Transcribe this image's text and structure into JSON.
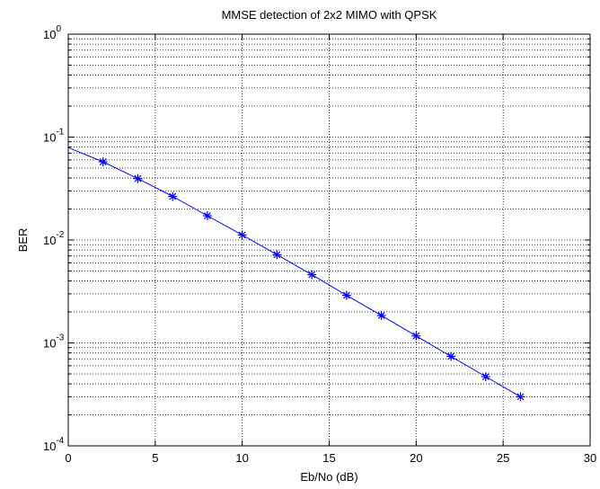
{
  "chart_data": {
    "type": "line",
    "title": "MMSE detection of 2x2 MIMO with QPSK",
    "xlabel": "Eb/No (dB)",
    "ylabel": "BER",
    "xlim": [
      0,
      30
    ],
    "ylim": [
      0.0001,
      1
    ],
    "yscale": "log",
    "grid": true,
    "x_ticks": [
      "0",
      "5",
      "10",
      "15",
      "20",
      "25",
      "30"
    ],
    "y_ticks": [
      {
        "base": "10",
        "exp": "-4"
      },
      {
        "base": "10",
        "exp": "-3"
      },
      {
        "base": "10",
        "exp": "-2"
      },
      {
        "base": "10",
        "exp": "-1"
      },
      {
        "base": "10",
        "exp": "0"
      }
    ],
    "line_color": "#0000ff",
    "series": [
      {
        "marker": "*",
        "x": [
          0,
          2,
          4,
          6,
          8,
          10,
          12,
          14,
          16,
          18,
          20,
          22,
          24,
          26
        ],
        "y": [
          0.079,
          0.0575,
          0.0395,
          0.0265,
          0.0172,
          0.0112,
          0.0072,
          0.0046,
          0.0029,
          0.00185,
          0.00117,
          0.00074,
          0.00047,
          0.0003
        ],
        "markers_at": [
          2,
          4,
          6,
          8,
          10,
          12,
          14,
          16,
          18,
          20,
          22,
          24,
          26
        ]
      }
    ]
  }
}
